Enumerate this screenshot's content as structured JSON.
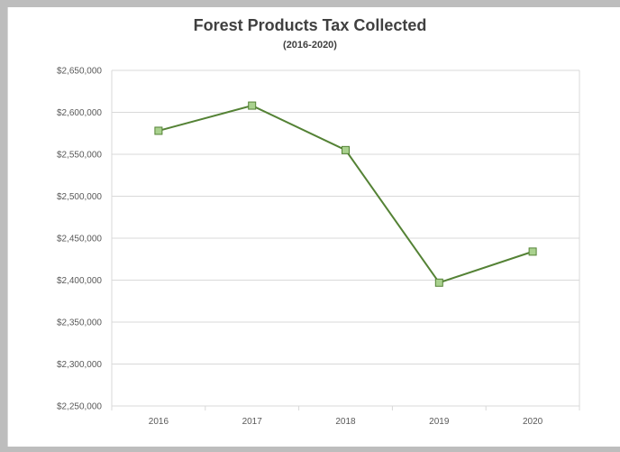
{
  "chart_data": {
    "type": "line",
    "title": "Forest Products Tax Collected",
    "subtitle": "(2016-2020)",
    "categories": [
      "2016",
      "2017",
      "2018",
      "2019",
      "2020"
    ],
    "series": [
      {
        "values": [
          2578000,
          2608000,
          2555000,
          2397000,
          2434000
        ]
      }
    ],
    "ylim": [
      2250000,
      2650000
    ],
    "ytick_step": 50000,
    "ytick_labels": [
      "$2,250,000",
      "$2,300,000",
      "$2,350,000",
      "$2,400,000",
      "$2,450,000",
      "$2,500,000",
      "$2,550,000",
      "$2,600,000",
      "$2,650,000"
    ],
    "xlabel": "",
    "ylabel": "",
    "grid": true,
    "legend": "none",
    "colors": {
      "line": "#548235",
      "marker_fill": "#a9d18e",
      "marker_stroke": "#548235",
      "grid": "#d9d9d9"
    }
  }
}
